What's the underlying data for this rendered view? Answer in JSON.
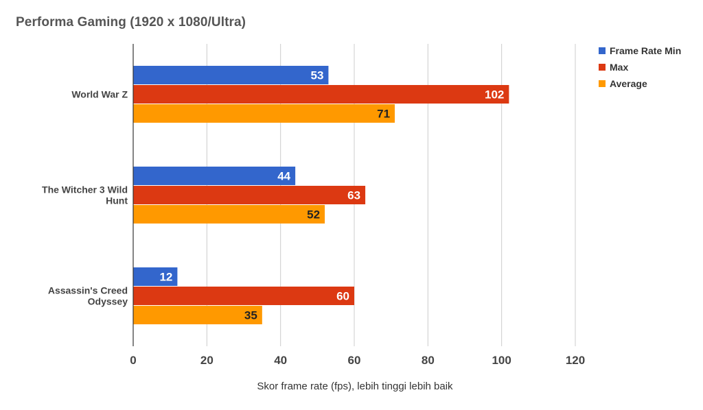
{
  "chart_data": {
    "type": "bar",
    "orientation": "horizontal",
    "title": "Performa Gaming (1920 x 1080/Ultra)",
    "xlabel": "Skor frame rate (fps), lebih tinggi lebih baik",
    "ylabel": "",
    "categories": [
      "World War Z",
      "The Witcher 3 Wild Hunt",
      "Assassin's Creed Odyssey"
    ],
    "category_lines": [
      [
        "World War Z"
      ],
      [
        "The Witcher 3 Wild",
        "Hunt"
      ],
      [
        "Assassin's Creed",
        "Odyssey"
      ]
    ],
    "series": [
      {
        "name": "Frame Rate Min",
        "color": "#3366cc",
        "label_color": "#ffffff",
        "values": [
          53,
          44,
          12
        ]
      },
      {
        "name": "Max",
        "color": "#dc3912",
        "label_color": "#ffffff",
        "values": [
          102,
          63,
          60
        ]
      },
      {
        "name": "Average",
        "color": "#ff9900",
        "label_color": "#222222",
        "values": [
          71,
          52,
          35
        ]
      }
    ],
    "xlim": [
      0,
      120
    ],
    "xticks": [
      0,
      20,
      40,
      60,
      80,
      100,
      120
    ],
    "grid": true,
    "legend_position": "right"
  }
}
